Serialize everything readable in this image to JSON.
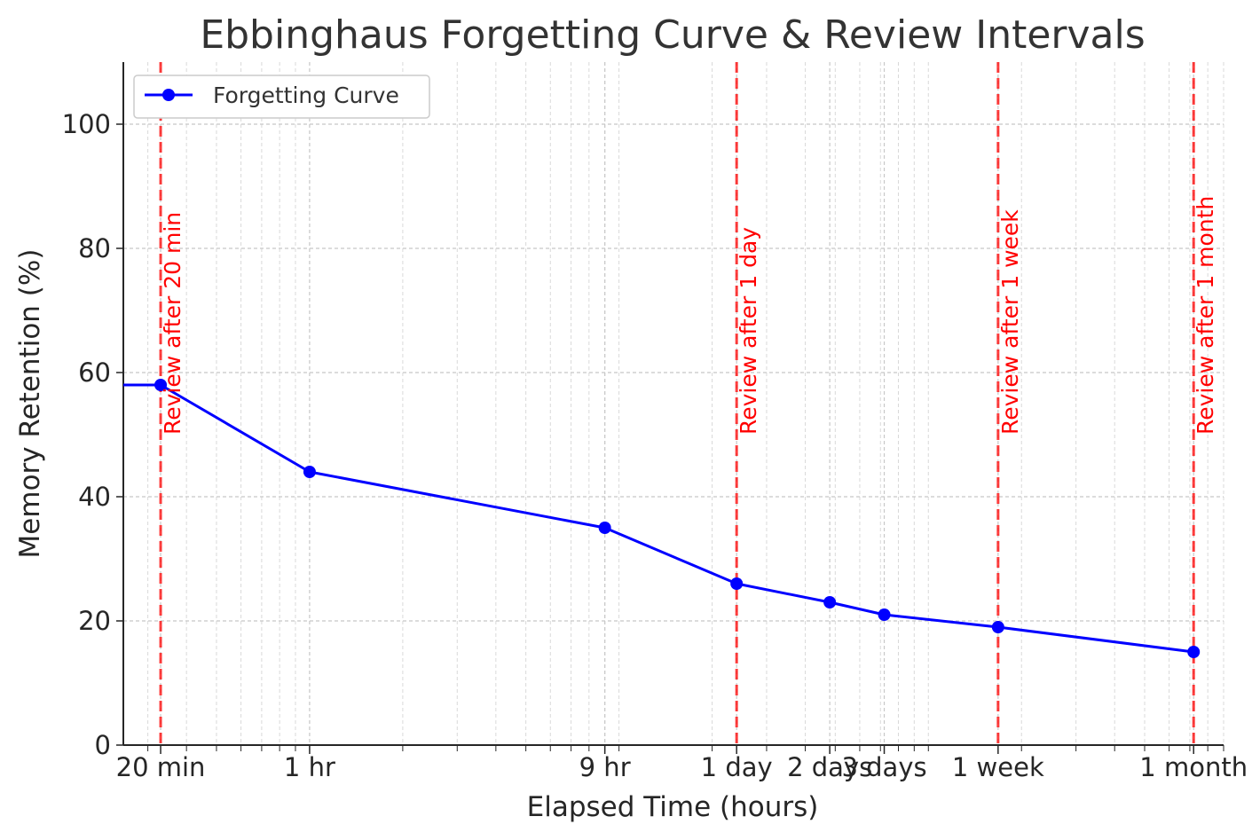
{
  "chart_data": {
    "type": "line",
    "title": "Ebbinghaus Forgetting Curve & Review Intervals",
    "xlabel": "Elapsed Time (hours)",
    "ylabel": "Memory Retention (%)",
    "x_scale": "log",
    "xlim": [
      0.25,
      900
    ],
    "ylim": [
      0,
      110
    ],
    "yticks": [
      0,
      20,
      40,
      60,
      80,
      100
    ],
    "xticks": [
      {
        "value": 0.33,
        "label": "20 min"
      },
      {
        "value": 1,
        "label": "1 hr"
      },
      {
        "value": 9,
        "label": "9 hr"
      },
      {
        "value": 24,
        "label": "1 day"
      },
      {
        "value": 48,
        "label": "2 days"
      },
      {
        "value": 72,
        "label": "3 days"
      },
      {
        "value": 168,
        "label": "1 week"
      },
      {
        "value": 720,
        "label": "1 month"
      }
    ],
    "grid": true,
    "legend_position": "top-left",
    "series": [
      {
        "name": "Forgetting Curve",
        "color": "#0000ff",
        "marker": "circle",
        "x": [
          0,
          0.33,
          1,
          9,
          24,
          48,
          72,
          168,
          720
        ],
        "y": [
          58,
          58,
          44,
          35,
          26,
          23,
          21,
          19,
          15
        ]
      }
    ],
    "annotations": [
      {
        "x": 0.33,
        "label": "Review after 20 min",
        "color": "#ff0000",
        "style": "dashed-vertical-line"
      },
      {
        "x": 24,
        "label": "Review after 1 day",
        "color": "#ff0000",
        "style": "dashed-vertical-line"
      },
      {
        "x": 168,
        "label": "Review after 1 week",
        "color": "#ff0000",
        "style": "dashed-vertical-line"
      },
      {
        "x": 720,
        "label": "Review after 1 month",
        "color": "#ff0000",
        "style": "dashed-vertical-line"
      }
    ]
  }
}
